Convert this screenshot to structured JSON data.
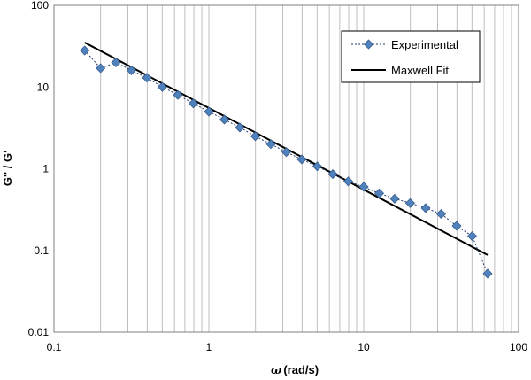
{
  "chart_data": {
    "type": "scatter",
    "xlabel_symbol": "ω",
    "xlabel_unit": "(rad/s)",
    "ylabel": "G'' / G'",
    "xscale": "log",
    "yscale": "log",
    "xlim": [
      0.1,
      100
    ],
    "ylim": [
      0.01,
      100
    ],
    "xticks": [
      "0.1",
      "1",
      "10",
      "100"
    ],
    "yticks": [
      "0.01",
      "0.1",
      "1",
      "10",
      "100"
    ],
    "grid": "vertical-minor",
    "legend_position": "top-right",
    "series": [
      {
        "name": "Experimental",
        "style": "dashed-line-diamond-markers",
        "color": "#4f81bd",
        "x": [
          0.158,
          0.2,
          0.251,
          0.316,
          0.398,
          0.501,
          0.631,
          0.794,
          1.0,
          1.259,
          1.585,
          1.995,
          2.512,
          3.162,
          3.981,
          5.012,
          6.31,
          7.943,
          10.0,
          12.59,
          15.85,
          19.95,
          25.12,
          31.62,
          39.81,
          50.12,
          63.1
        ],
        "y": [
          28,
          17,
          20,
          16,
          13,
          10,
          8,
          6.3,
          5.0,
          4.0,
          3.2,
          2.5,
          2.0,
          1.6,
          1.3,
          1.07,
          0.86,
          0.7,
          0.6,
          0.5,
          0.43,
          0.38,
          0.33,
          0.28,
          0.2,
          0.15,
          0.052
        ]
      },
      {
        "name": "Maxwell Fit",
        "style": "solid-line",
        "color": "#000000",
        "x": [
          0.158,
          63.1
        ],
        "y": [
          35,
          0.088
        ]
      }
    ]
  }
}
